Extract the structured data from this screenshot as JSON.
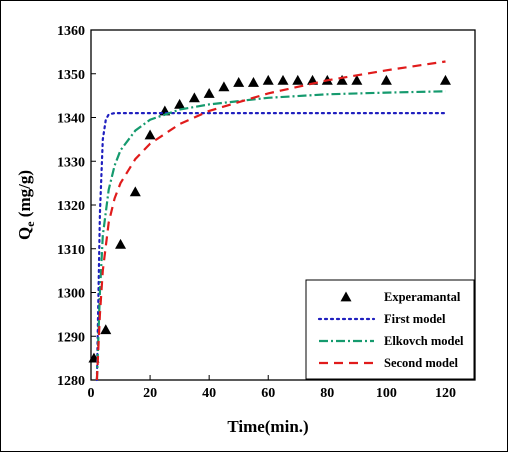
{
  "chart_data": {
    "type": "scatter",
    "xlabel": "Time(min.)",
    "ylabel_main": "Q",
    "ylabel_sub": "e",
    "ylabel_rest": " (mg/g)",
    "xlim": [
      0,
      130
    ],
    "ylim": [
      1280,
      1360
    ],
    "xticks": [
      0,
      20,
      40,
      60,
      80,
      100,
      120
    ],
    "yticks": [
      1280,
      1290,
      1300,
      1310,
      1320,
      1330,
      1340,
      1350,
      1360
    ],
    "grid": false,
    "legend_position": "bottom-right",
    "series": [
      {
        "name": "Experamantal",
        "style": "markers",
        "marker": "triangle",
        "color": "#000000",
        "x": [
          1,
          5,
          10,
          15,
          20,
          25,
          30,
          35,
          40,
          45,
          50,
          55,
          60,
          65,
          70,
          75,
          80,
          85,
          90,
          100,
          120
        ],
        "y": [
          1285,
          1291.5,
          1311,
          1323,
          1336,
          1341.5,
          1343,
          1344.5,
          1345.5,
          1347,
          1348,
          1348,
          1348.5,
          1348.5,
          1348.5,
          1348.5,
          1348.5,
          1348.5,
          1348.5,
          1348.5,
          1348.5
        ]
      },
      {
        "name": "First model",
        "style": "dotted",
        "color": "#1f1fbf",
        "x": [
          2,
          3,
          4,
          5,
          6,
          8,
          10,
          20,
          40,
          60,
          80,
          100,
          120
        ],
        "y": [
          1280,
          1318,
          1335,
          1339.5,
          1340.7,
          1341,
          1341,
          1341,
          1341,
          1341,
          1341,
          1341,
          1341
        ]
      },
      {
        "name": "Elkovch model",
        "style": "dashdot",
        "color": "#159a6e",
        "x": [
          2,
          3,
          4,
          6,
          8,
          10,
          15,
          20,
          30,
          40,
          60,
          80,
          100,
          120
        ],
        "y": [
          1280,
          1300,
          1313,
          1323.5,
          1329,
          1332.5,
          1337,
          1339.5,
          1341.8,
          1343,
          1344.5,
          1345.3,
          1345.7,
          1346
        ]
      },
      {
        "name": "Second model",
        "style": "dashed",
        "color": "#e01b1b",
        "x": [
          2,
          3,
          4,
          6,
          8,
          10,
          15,
          20,
          30,
          40,
          60,
          80,
          100,
          120
        ],
        "y": [
          1280,
          1295,
          1305,
          1316,
          1321.5,
          1325,
          1330.5,
          1334,
          1338.5,
          1341.5,
          1345.5,
          1348.5,
          1350.8,
          1352.8
        ]
      }
    ]
  }
}
